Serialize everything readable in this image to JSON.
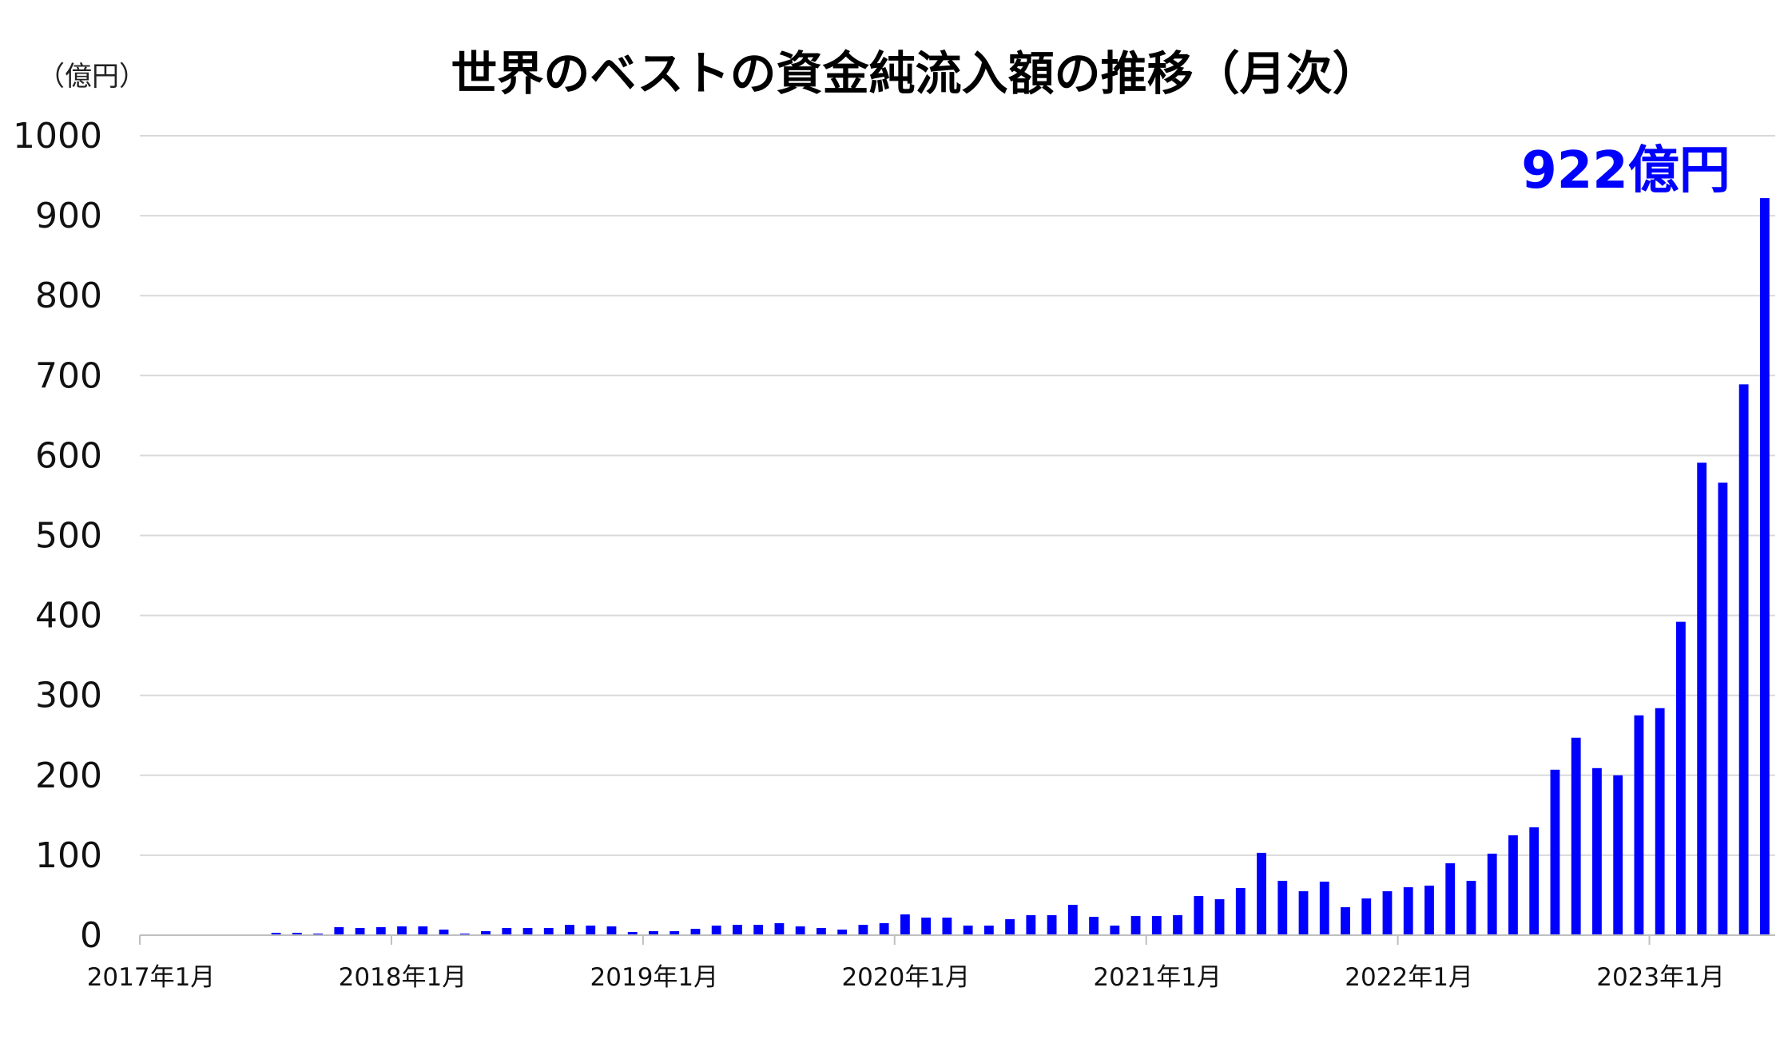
{
  "chart_data": {
    "type": "bar",
    "title": "世界のベストの資金純流入額の推移（月次）",
    "unit_label": "（億円）",
    "ylim": [
      0,
      1000
    ],
    "yticks": [
      0,
      100,
      200,
      300,
      400,
      500,
      600,
      700,
      800,
      900,
      1000
    ],
    "grid": true,
    "bar_color": "#0000ff",
    "x_tick_labels": [
      "2017年1月",
      "2018年1月",
      "2019年1月",
      "2020年1月",
      "2021年1月",
      "2022年1月",
      "2023年1月"
    ],
    "start_month": "2017-01",
    "values": [
      0,
      0,
      0,
      0,
      0,
      0,
      3,
      3,
      2,
      10,
      9,
      10,
      11,
      11,
      7,
      2,
      5,
      9,
      9,
      9,
      13,
      12,
      11,
      4,
      5,
      5,
      8,
      12,
      13,
      13,
      15,
      11,
      9,
      7,
      13,
      15,
      26,
      22,
      22,
      12,
      12,
      20,
      25,
      25,
      38,
      23,
      12,
      24,
      24,
      25,
      49,
      45,
      59,
      103,
      68,
      55,
      67,
      35,
      46,
      55,
      60,
      62,
      90,
      68,
      102,
      125,
      135,
      207,
      247,
      209,
      200,
      275,
      284,
      392,
      591,
      566,
      689,
      922
    ],
    "annotation": "922億円",
    "annotation_color": "#0000ff"
  }
}
